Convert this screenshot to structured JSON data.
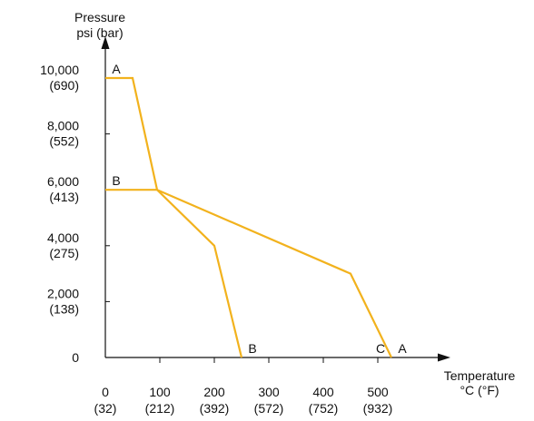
{
  "chart_data": {
    "type": "line",
    "title": "",
    "ylabel": [
      "Pressure",
      "psi (bar)"
    ],
    "xlabel": [
      "Temperature",
      "°C (°F)"
    ],
    "xlim": [
      0,
      600
    ],
    "ylim": [
      0,
      10000
    ],
    "y_ticks": [
      {
        "value": 10000,
        "label": "10,000",
        "sub": "(690)"
      },
      {
        "value": 8000,
        "label": "8,000",
        "sub": "(552)"
      },
      {
        "value": 6000,
        "label": "6,000",
        "sub": "(413)"
      },
      {
        "value": 4000,
        "label": "4,000",
        "sub": "(275)"
      },
      {
        "value": 2000,
        "label": "2,000",
        "sub": "(138)"
      },
      {
        "value": 0,
        "label": "0",
        "sub": ""
      }
    ],
    "x_ticks": [
      {
        "value": 0,
        "label": "0",
        "sub": "(32)"
      },
      {
        "value": 100,
        "label": "100",
        "sub": "(212)"
      },
      {
        "value": 200,
        "label": "200",
        "sub": "(392)"
      },
      {
        "value": 300,
        "label": "300",
        "sub": "(572)"
      },
      {
        "value": 400,
        "label": "400",
        "sub": "(752)"
      },
      {
        "value": 500,
        "label": "500",
        "sub": "(932)"
      }
    ],
    "series": [
      {
        "name": "A",
        "color": "#F2B21D",
        "points": [
          [
            0,
            10000
          ],
          [
            50,
            10000
          ],
          [
            95,
            6000
          ],
          [
            450,
            3000
          ],
          [
            525,
            0
          ]
        ]
      },
      {
        "name": "B",
        "color": "#F2B21D",
        "points": [
          [
            0,
            6000
          ],
          [
            95,
            6000
          ],
          [
            200,
            4000
          ],
          [
            250,
            0
          ]
        ]
      }
    ],
    "annotations": [
      {
        "text": "A",
        "x": 20,
        "y": 10000,
        "anchor": "above"
      },
      {
        "text": "B",
        "x": 20,
        "y": 6000,
        "anchor": "above"
      },
      {
        "text": "B",
        "x": 270,
        "y": 0,
        "anchor": "above"
      },
      {
        "text": "C",
        "x": 505,
        "y": 0,
        "anchor": "above"
      },
      {
        "text": "A",
        "x": 545,
        "y": 0,
        "anchor": "above"
      }
    ],
    "grid": false,
    "legend": "none"
  }
}
